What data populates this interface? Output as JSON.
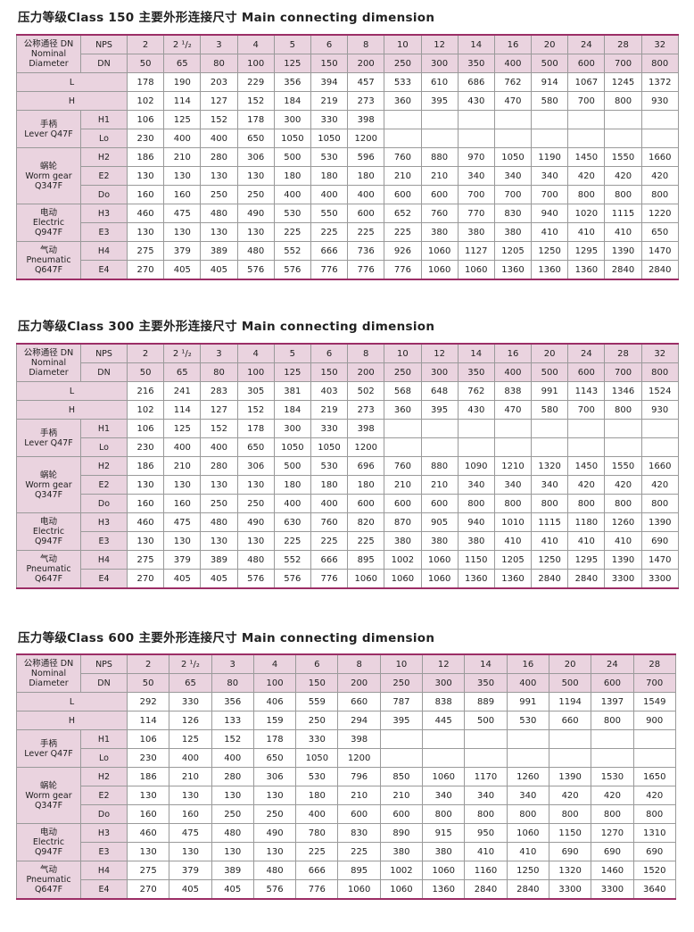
{
  "colors": {
    "header_bg": "#ead3df",
    "rule": "#9c2e66"
  },
  "labels": {
    "nominal": [
      "公称通径 DN",
      "Nominal",
      "Diameter"
    ],
    "nps": "NPS",
    "dn": "DN",
    "L": "L",
    "H": "H",
    "groups": [
      {
        "name": [
          "手柄",
          "Lever Q47F"
        ],
        "rows": [
          "H1",
          "Lo"
        ]
      },
      {
        "name": [
          "蜗轮",
          "Worm gear",
          "Q347F"
        ],
        "rows": [
          "H2",
          "E2",
          "Do"
        ]
      },
      {
        "name": [
          "电动",
          "Electric",
          "Q947F"
        ],
        "rows": [
          "H3",
          "E3"
        ]
      },
      {
        "name": [
          "气动",
          "Pneumatic",
          "Q647F"
        ],
        "rows": [
          "H4",
          "E4"
        ]
      }
    ]
  },
  "tables": [
    {
      "title": "压力等级Class  150  主要外形连接尺寸  Main  connecting  dimension",
      "nps": [
        "2",
        "2 ¹/₂",
        "3",
        "4",
        "5",
        "6",
        "8",
        "10",
        "12",
        "14",
        "16",
        "20",
        "24",
        "28",
        "32"
      ],
      "dn": [
        "50",
        "65",
        "80",
        "100",
        "125",
        "150",
        "200",
        "250",
        "300",
        "350",
        "400",
        "500",
        "600",
        "700",
        "800"
      ],
      "L": [
        "178",
        "190",
        "203",
        "229",
        "356",
        "394",
        "457",
        "533",
        "610",
        "686",
        "762",
        "914",
        "1067",
        "1245",
        "1372"
      ],
      "H": [
        "102",
        "114",
        "127",
        "152",
        "184",
        "219",
        "273",
        "360",
        "395",
        "430",
        "470",
        "580",
        "700",
        "800",
        "930"
      ],
      "H1": [
        "106",
        "125",
        "152",
        "178",
        "300",
        "330",
        "398",
        "",
        "",
        "",
        "",
        "",
        "",
        "",
        ""
      ],
      "Lo": [
        "230",
        "400",
        "400",
        "650",
        "1050",
        "1050",
        "1200",
        "",
        "",
        "",
        "",
        "",
        "",
        "",
        ""
      ],
      "H2": [
        "186",
        "210",
        "280",
        "306",
        "500",
        "530",
        "596",
        "760",
        "880",
        "970",
        "1050",
        "1190",
        "1450",
        "1550",
        "1660"
      ],
      "E2": [
        "130",
        "130",
        "130",
        "130",
        "180",
        "180",
        "180",
        "210",
        "210",
        "340",
        "340",
        "340",
        "420",
        "420",
        "420"
      ],
      "Do": [
        "160",
        "160",
        "250",
        "250",
        "400",
        "400",
        "400",
        "600",
        "600",
        "700",
        "700",
        "700",
        "800",
        "800",
        "800"
      ],
      "H3": [
        "460",
        "475",
        "480",
        "490",
        "530",
        "550",
        "600",
        "652",
        "760",
        "770",
        "830",
        "940",
        "1020",
        "1115",
        "1220"
      ],
      "E3": [
        "130",
        "130",
        "130",
        "130",
        "225",
        "225",
        "225",
        "225",
        "380",
        "380",
        "380",
        "410",
        "410",
        "410",
        "650"
      ],
      "H4": [
        "275",
        "379",
        "389",
        "480",
        "552",
        "666",
        "736",
        "926",
        "1060",
        "1127",
        "1205",
        "1250",
        "1295",
        "1390",
        "1470"
      ],
      "E4": [
        "270",
        "405",
        "405",
        "576",
        "576",
        "776",
        "776",
        "776",
        "1060",
        "1060",
        "1360",
        "1360",
        "1360",
        "2840",
        "2840"
      ]
    },
    {
      "title": "压力等级Class  300 主要外形连接尺寸  Main  connecting  dimension",
      "nps": [
        "2",
        "2 ¹/₂",
        "3",
        "4",
        "5",
        "6",
        "8",
        "10",
        "12",
        "14",
        "16",
        "20",
        "24",
        "28",
        "32"
      ],
      "dn": [
        "50",
        "65",
        "80",
        "100",
        "125",
        "150",
        "200",
        "250",
        "300",
        "350",
        "400",
        "500",
        "600",
        "700",
        "800"
      ],
      "L": [
        "216",
        "241",
        "283",
        "305",
        "381",
        "403",
        "502",
        "568",
        "648",
        "762",
        "838",
        "991",
        "1143",
        "1346",
        "1524"
      ],
      "H": [
        "102",
        "114",
        "127",
        "152",
        "184",
        "219",
        "273",
        "360",
        "395",
        "430",
        "470",
        "580",
        "700",
        "800",
        "930"
      ],
      "H1": [
        "106",
        "125",
        "152",
        "178",
        "300",
        "330",
        "398",
        "",
        "",
        "",
        "",
        "",
        "",
        "",
        ""
      ],
      "Lo": [
        "230",
        "400",
        "400",
        "650",
        "1050",
        "1050",
        "1200",
        "",
        "",
        "",
        "",
        "",
        "",
        "",
        ""
      ],
      "H2": [
        "186",
        "210",
        "280",
        "306",
        "500",
        "530",
        "696",
        "760",
        "880",
        "1090",
        "1210",
        "1320",
        "1450",
        "1550",
        "1660"
      ],
      "E2": [
        "130",
        "130",
        "130",
        "130",
        "180",
        "180",
        "180",
        "210",
        "210",
        "340",
        "340",
        "340",
        "420",
        "420",
        "420"
      ],
      "Do": [
        "160",
        "160",
        "250",
        "250",
        "400",
        "400",
        "600",
        "600",
        "600",
        "800",
        "800",
        "800",
        "800",
        "800",
        "800"
      ],
      "H3": [
        "460",
        "475",
        "480",
        "490",
        "630",
        "760",
        "820",
        "870",
        "905",
        "940",
        "1010",
        "1115",
        "1180",
        "1260",
        "1390"
      ],
      "E3": [
        "130",
        "130",
        "130",
        "130",
        "225",
        "225",
        "225",
        "380",
        "380",
        "380",
        "410",
        "410",
        "410",
        "410",
        "690"
      ],
      "H4": [
        "275",
        "379",
        "389",
        "480",
        "552",
        "666",
        "895",
        "1002",
        "1060",
        "1150",
        "1205",
        "1250",
        "1295",
        "1390",
        "1470"
      ],
      "E4": [
        "270",
        "405",
        "405",
        "576",
        "576",
        "776",
        "1060",
        "1060",
        "1060",
        "1360",
        "1360",
        "2840",
        "2840",
        "3300",
        "3300"
      ]
    },
    {
      "title": "压力等级Class  600 主要外形连接尺寸  Main  connecting  dimension",
      "nps": [
        "2",
        "2 ¹/₂",
        "3",
        "4",
        "6",
        "8",
        "10",
        "12",
        "14",
        "16",
        "20",
        "24",
        "28"
      ],
      "dn": [
        "50",
        "65",
        "80",
        "100",
        "150",
        "200",
        "250",
        "300",
        "350",
        "400",
        "500",
        "600",
        "700"
      ],
      "L": [
        "292",
        "330",
        "356",
        "406",
        "559",
        "660",
        "787",
        "838",
        "889",
        "991",
        "1194",
        "1397",
        "1549"
      ],
      "H": [
        "114",
        "126",
        "133",
        "159",
        "250",
        "294",
        "395",
        "445",
        "500",
        "530",
        "660",
        "800",
        "900"
      ],
      "H1": [
        "106",
        "125",
        "152",
        "178",
        "330",
        "398",
        "",
        "",
        "",
        "",
        "",
        "",
        ""
      ],
      "Lo": [
        "230",
        "400",
        "400",
        "650",
        "1050",
        "1200",
        "",
        "",
        "",
        "",
        "",
        "",
        ""
      ],
      "H2": [
        "186",
        "210",
        "280",
        "306",
        "530",
        "796",
        "850",
        "1060",
        "1170",
        "1260",
        "1390",
        "1530",
        "1650"
      ],
      "E2": [
        "130",
        "130",
        "130",
        "130",
        "180",
        "210",
        "210",
        "340",
        "340",
        "340",
        "420",
        "420",
        "420"
      ],
      "Do": [
        "160",
        "160",
        "250",
        "250",
        "400",
        "600",
        "600",
        "800",
        "800",
        "800",
        "800",
        "800",
        "800"
      ],
      "H3": [
        "460",
        "475",
        "480",
        "490",
        "780",
        "830",
        "890",
        "915",
        "950",
        "1060",
        "1150",
        "1270",
        "1310"
      ],
      "E3": [
        "130",
        "130",
        "130",
        "130",
        "225",
        "225",
        "380",
        "380",
        "410",
        "410",
        "690",
        "690",
        "690"
      ],
      "H4": [
        "275",
        "379",
        "389",
        "480",
        "666",
        "895",
        "1002",
        "1060",
        "1160",
        "1250",
        "1320",
        "1460",
        "1520"
      ],
      "E4": [
        "270",
        "405",
        "405",
        "576",
        "776",
        "1060",
        "1060",
        "1360",
        "2840",
        "2840",
        "3300",
        "3300",
        "3640"
      ]
    }
  ]
}
